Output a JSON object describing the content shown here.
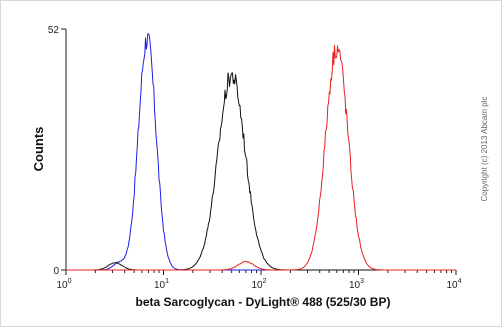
{
  "chart_data": {
    "type": "line",
    "xlabel": "beta Sarcoglycan - DyLight® 488 (525/30 BP)",
    "ylabel": "Counts",
    "x_scale": "log",
    "xlim": [
      1,
      10000
    ],
    "ylim": [
      0,
      52
    ],
    "x_ticks": [
      {
        "value": 1,
        "base": "10",
        "exp": "0"
      },
      {
        "value": 10,
        "base": "10",
        "exp": "1"
      },
      {
        "value": 100,
        "base": "10",
        "exp": "2"
      },
      {
        "value": 1000,
        "base": "10",
        "exp": "3"
      },
      {
        "value": 10000,
        "base": "10",
        "exp": "4"
      }
    ],
    "y_ticks": [
      {
        "value": 0,
        "label": "0"
      },
      {
        "value": 52,
        "label": "52"
      }
    ],
    "series": [
      {
        "color": "#1f1fe6",
        "peaks": [
          {
            "center": 6.8,
            "sigma": 0.09,
            "height": 50
          },
          {
            "center": 3.5,
            "sigma": 0.06,
            "height": 1.5
          }
        ]
      },
      {
        "color": "#111111",
        "peaks": [
          {
            "center": 50,
            "sigma": 0.14,
            "height": 42
          },
          {
            "center": 3.2,
            "sigma": 0.07,
            "height": 1.6
          }
        ]
      },
      {
        "color": "#e82020",
        "peaks": [
          {
            "center": 600,
            "sigma": 0.115,
            "height": 48
          },
          {
            "center": 70,
            "sigma": 0.08,
            "height": 1.8
          }
        ]
      }
    ],
    "annotation": "Copyright (c) 2013 Abcam plc"
  }
}
